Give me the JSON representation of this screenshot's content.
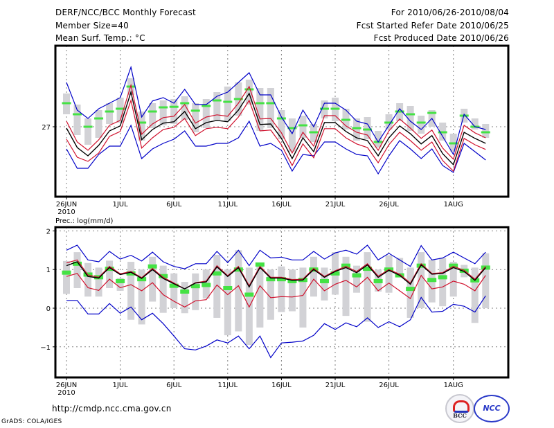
{
  "header": {
    "title": "DERF/NCC/BCC Monthly Forecast",
    "member_size": "Member Size=40",
    "variable": "Mean Surf. Temp.: °C",
    "period": "For 2010/06/26-2010/08/04",
    "started_date": "Fcst Started Refer Date 2010/06/25",
    "produced_date": "Fcst Produced Date 2010/06/26"
  },
  "footer": {
    "url": "http://cmdp.ncc.cma.gov.cn",
    "credit": "GrADS: COLA/IGES",
    "logos": [
      "BCC",
      "NCC"
    ]
  },
  "colors": {
    "ensemble_mean": "#000000",
    "inner_spread": "#d0102c",
    "outer_spread": "#0000c8",
    "observed_climatology": "#44e244",
    "box": "#d2d2d6"
  },
  "chart_data": [
    {
      "type": "line",
      "title": "Mean Surf. Temp.: °C",
      "xlabel": "",
      "ylabel": "°C",
      "x_ticks": [
        "26JUN",
        "1JUL",
        "6JUL",
        "11JUL",
        "16JUL",
        "21JUL",
        "26JUL",
        "1AUG"
      ],
      "x_tick_day_index": [
        0,
        5,
        10,
        15,
        20,
        25,
        30,
        36
      ],
      "x_year_label": "2010",
      "y_ticks": [
        27
      ],
      "ylim": [
        24.5,
        29.9
      ],
      "grid": true,
      "n_days": 40,
      "series": [
        {
          "name": "ensemble mean",
          "values": [
            26.95,
            26.25,
            25.95,
            26.33,
            26.85,
            27.03,
            28.25,
            26.53,
            26.9,
            27.13,
            27.18,
            27.55,
            26.93,
            27.15,
            27.23,
            27.18,
            27.6,
            28.2,
            27.08,
            27.1,
            26.58,
            25.85,
            26.6,
            26.1,
            27.15,
            27.15,
            26.83,
            26.6,
            26.5,
            25.95,
            26.6,
            27.03,
            26.75,
            26.38,
            26.68,
            26.03,
            25.63,
            26.8,
            26.58,
            26.4
          ]
        },
        {
          "name": "upper inner bound",
          "values": [
            27.2,
            26.45,
            26.15,
            26.53,
            27.05,
            27.23,
            28.5,
            26.73,
            27.1,
            27.33,
            27.38,
            27.8,
            27.13,
            27.35,
            27.43,
            27.38,
            27.85,
            28.45,
            27.28,
            27.3,
            26.78,
            26.05,
            26.8,
            26.3,
            27.4,
            27.4,
            27.03,
            26.8,
            26.7,
            26.15,
            26.85,
            27.28,
            26.95,
            26.58,
            26.88,
            26.23,
            25.83,
            27.05,
            26.78,
            26.6
          ]
        },
        {
          "name": "lower inner bound",
          "values": [
            26.55,
            25.9,
            25.75,
            26.05,
            26.65,
            26.83,
            27.95,
            26.23,
            26.6,
            26.9,
            26.98,
            27.3,
            26.68,
            26.93,
            26.98,
            26.93,
            27.35,
            27.95,
            26.85,
            26.88,
            26.35,
            25.6,
            26.38,
            25.88,
            26.93,
            26.93,
            26.6,
            26.38,
            26.25,
            25.7,
            26.35,
            26.8,
            26.5,
            26.15,
            26.45,
            25.78,
            25.4,
            26.58,
            26.35,
            26.18
          ]
        },
        {
          "name": "upper outer bound",
          "values": [
            28.6,
            27.6,
            27.3,
            27.65,
            27.85,
            28.05,
            29.15,
            27.35,
            27.93,
            28.05,
            27.85,
            28.35,
            27.8,
            27.8,
            28.1,
            28.25,
            28.6,
            28.95,
            28.15,
            28.15,
            27.35,
            26.75,
            27.6,
            27.0,
            27.85,
            27.85,
            27.6,
            27.2,
            27.1,
            26.45,
            27.05,
            27.65,
            27.2,
            26.9,
            27.3,
            26.65,
            26.0,
            27.45,
            27.0,
            26.9
          ]
        },
        {
          "name": "lower outer bound",
          "values": [
            26.2,
            25.5,
            25.5,
            26.0,
            26.3,
            26.3,
            27.05,
            25.85,
            26.2,
            26.4,
            26.55,
            26.85,
            26.3,
            26.3,
            26.4,
            26.4,
            26.6,
            27.2,
            26.3,
            26.4,
            26.15,
            25.4,
            26.0,
            25.95,
            26.45,
            26.45,
            26.2,
            26.0,
            25.95,
            25.3,
            25.95,
            26.5,
            26.2,
            25.85,
            26.2,
            25.6,
            25.35,
            26.4,
            26.1,
            25.8
          ]
        },
        {
          "name": "observed climatology (green)",
          "values": [
            27.85,
            27.45,
            27.0,
            27.3,
            27.55,
            27.65,
            28.45,
            27.15,
            27.55,
            27.7,
            27.72,
            27.85,
            27.58,
            27.75,
            27.95,
            27.9,
            28.0,
            28.35,
            27.85,
            27.85,
            27.3,
            26.95,
            27.05,
            26.8,
            27.65,
            27.65,
            27.25,
            26.95,
            26.9,
            26.45,
            27.15,
            27.55,
            27.45,
            27.15,
            27.5,
            26.8,
            26.4,
            27.4,
            27.0,
            26.8
          ]
        },
        {
          "name": "box top",
          "values": [
            28.2,
            27.8,
            27.3,
            27.6,
            27.85,
            28.05,
            28.75,
            27.55,
            27.85,
            27.95,
            28.0,
            28.1,
            27.85,
            28.0,
            28.25,
            28.45,
            28.6,
            28.7,
            28.4,
            28.4,
            27.6,
            27.3,
            27.4,
            27.1,
            27.95,
            28.05,
            27.65,
            27.3,
            27.35,
            26.85,
            27.45,
            27.85,
            27.75,
            27.4,
            27.6,
            27.15,
            26.75,
            27.65,
            27.3,
            27.1
          ]
        },
        {
          "name": "box bottom",
          "values": [
            27.45,
            26.7,
            26.35,
            26.6,
            27.1,
            27.15,
            28.15,
            26.5,
            26.95,
            27.05,
            27.1,
            27.25,
            26.8,
            26.95,
            27.25,
            27.2,
            27.4,
            27.8,
            26.85,
            26.95,
            26.55,
            26.1,
            26.6,
            26.45,
            27.3,
            27.2,
            26.9,
            26.5,
            26.55,
            26.25,
            26.9,
            27.2,
            26.85,
            26.75,
            27.0,
            26.5,
            26.1,
            27.15,
            26.9,
            26.6
          ]
        }
      ]
    },
    {
      "type": "line",
      "title": "Prec.: log(mm/d)",
      "xlabel": "",
      "ylabel": "log(mm/d)",
      "x_ticks": [
        "26JUN",
        "1JUL",
        "6JUL",
        "11JUL",
        "16JUL",
        "21JUL",
        "26JUL",
        "1AUG"
      ],
      "x_tick_day_index": [
        0,
        5,
        10,
        15,
        20,
        25,
        30,
        36
      ],
      "x_year_label": "2010",
      "y_ticks": [
        2,
        1,
        0,
        -1
      ],
      "ylim": [
        -1.8,
        2.05
      ],
      "grid": true,
      "n_days": 40,
      "series": [
        {
          "name": "ensemble mean",
          "values": [
            1.1,
            1.2,
            0.82,
            0.78,
            1.05,
            0.87,
            0.93,
            0.77,
            1.0,
            0.77,
            0.63,
            0.5,
            0.65,
            0.68,
            1.07,
            0.82,
            1.05,
            0.55,
            1.05,
            0.78,
            0.78,
            0.72,
            0.73,
            1.0,
            0.8,
            0.95,
            1.05,
            0.92,
            1.12,
            0.8,
            0.98,
            0.85,
            0.62,
            1.12,
            0.88,
            0.9,
            1.05,
            0.95,
            0.72,
            1.05
          ]
        },
        {
          "name": "upper inner bound",
          "values": [
            1.17,
            1.25,
            0.86,
            0.8,
            1.08,
            0.89,
            0.95,
            0.79,
            1.03,
            0.8,
            0.65,
            0.5,
            0.66,
            0.7,
            1.1,
            0.84,
            1.08,
            0.58,
            1.08,
            0.8,
            0.8,
            0.74,
            0.75,
            1.03,
            0.82,
            0.97,
            1.08,
            0.95,
            1.15,
            0.83,
            1.0,
            0.88,
            0.65,
            1.15,
            0.9,
            0.92,
            1.08,
            0.98,
            0.75,
            1.08
          ]
        },
        {
          "name": "lower inner bound",
          "values": [
            0.82,
            0.9,
            0.53,
            0.46,
            0.75,
            0.53,
            0.61,
            0.45,
            0.66,
            0.35,
            0.18,
            0.03,
            0.19,
            0.22,
            0.6,
            0.35,
            0.58,
            0.03,
            0.58,
            0.27,
            0.3,
            0.29,
            0.33,
            0.75,
            0.45,
            0.62,
            0.72,
            0.55,
            0.8,
            0.45,
            0.65,
            0.45,
            0.25,
            0.85,
            0.5,
            0.55,
            0.7,
            0.62,
            0.45,
            0.85
          ]
        },
        {
          "name": "upper outer bound",
          "values": [
            1.5,
            1.63,
            1.25,
            1.2,
            1.47,
            1.27,
            1.37,
            1.22,
            1.45,
            1.2,
            1.08,
            1.02,
            1.15,
            1.15,
            1.47,
            1.18,
            1.5,
            1.1,
            1.5,
            1.3,
            1.32,
            1.25,
            1.25,
            1.47,
            1.27,
            1.43,
            1.5,
            1.4,
            1.63,
            1.25,
            1.42,
            1.25,
            1.08,
            1.62,
            1.25,
            1.3,
            1.45,
            1.3,
            1.15,
            1.45
          ]
        },
        {
          "name": "lower outer bound",
          "values": [
            0.2,
            0.2,
            -0.15,
            -0.15,
            0.12,
            -0.13,
            0.03,
            -0.3,
            -0.13,
            -0.4,
            -0.72,
            -1.05,
            -1.08,
            -0.98,
            -0.82,
            -0.9,
            -0.72,
            -1.05,
            -0.72,
            -1.28,
            -0.9,
            -0.88,
            -0.85,
            -0.7,
            -0.4,
            -0.55,
            -0.38,
            -0.48,
            -0.25,
            -0.5,
            -0.35,
            -0.48,
            -0.3,
            0.28,
            -0.1,
            -0.08,
            0.1,
            0.05,
            -0.1,
            0.32
          ]
        },
        {
          "name": "observed climatology (green)",
          "values": [
            0.92,
            1.15,
            0.87,
            0.8,
            1.02,
            0.7,
            0.9,
            0.75,
            1.08,
            0.83,
            0.58,
            0.43,
            0.57,
            0.6,
            0.9,
            0.52,
            1.0,
            0.35,
            1.13,
            0.75,
            0.75,
            0.7,
            0.73,
            1.0,
            0.7,
            0.9,
            1.1,
            0.85,
            1.02,
            0.7,
            1.0,
            0.85,
            0.5,
            1.1,
            0.73,
            0.8,
            1.1,
            0.97,
            0.72,
            1.05
          ]
        },
        {
          "name": "box top",
          "values": [
            1.22,
            1.45,
            1.17,
            1.05,
            1.23,
            0.78,
            1.2,
            1.0,
            1.33,
            1.1,
            0.9,
            0.68,
            0.9,
            1.0,
            1.38,
            1.0,
            1.5,
            1.05,
            1.15,
            1.0,
            1.08,
            1.0,
            1.05,
            1.33,
            1.05,
            1.45,
            1.33,
            1.1,
            1.45,
            1.0,
            1.37,
            1.3,
            1.05,
            1.45,
            1.25,
            1.3,
            1.2,
            1.12,
            1.05,
            1.42
          ]
        },
        {
          "name": "box bottom",
          "values": [
            0.37,
            0.52,
            0.3,
            0.3,
            0.52,
            0.45,
            -0.3,
            -0.42,
            0.17,
            -0.12,
            0.0,
            -0.13,
            -0.05,
            0.25,
            -0.25,
            -0.7,
            -0.6,
            -0.95,
            -0.5,
            -0.3,
            -0.1,
            -0.08,
            -0.5,
            0.3,
            0.2,
            0.35,
            -0.2,
            0.4,
            -0.35,
            0.43,
            0.4,
            0.8,
            -0.25,
            0.0,
            0.15,
            0.05,
            0.3,
            0.8,
            -0.38,
            0.0
          ]
        }
      ]
    }
  ]
}
